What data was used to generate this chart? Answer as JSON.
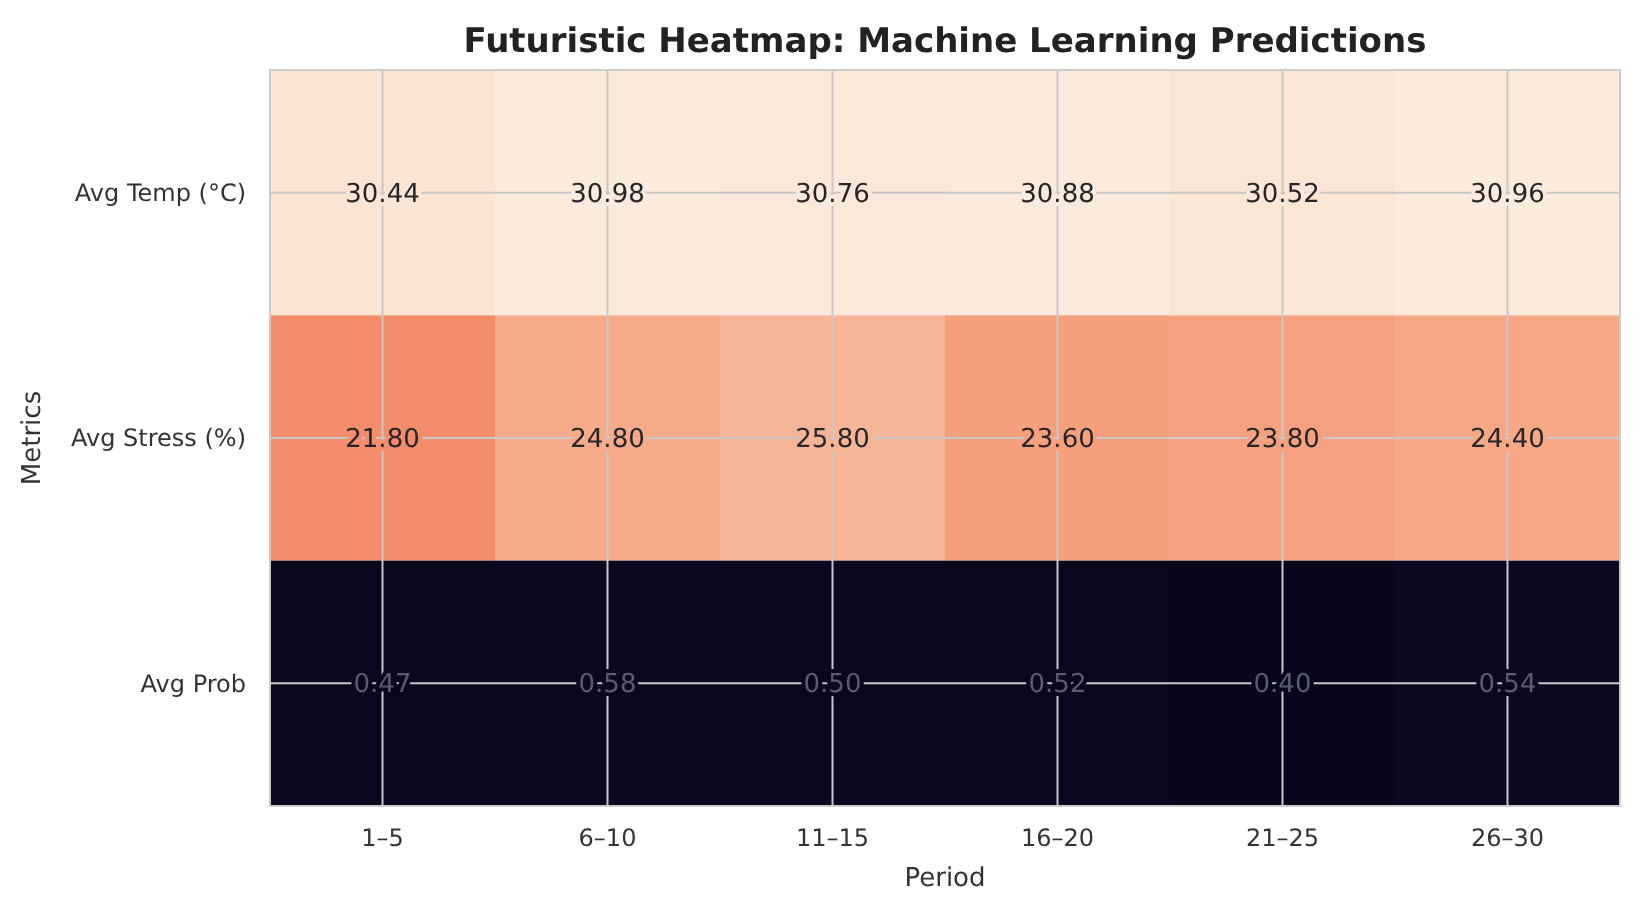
{
  "chart_data": {
    "type": "heatmap",
    "title": "Futuristic Heatmap: Machine Learning Predictions",
    "xlabel": "Period",
    "ylabel": "Metrics",
    "categories": [
      "1–5",
      "6–10",
      "11–15",
      "16–20",
      "21–25",
      "26–30"
    ],
    "y_categories": [
      "Avg Temp (°C)",
      "Avg Stress (%)",
      "Avg Prob"
    ],
    "cells": [
      [
        30.44,
        30.98,
        30.76,
        30.88,
        30.52,
        30.96
      ],
      [
        21.8,
        24.8,
        25.8,
        23.6,
        23.8,
        24.4
      ],
      [
        0.47,
        0.58,
        0.5,
        0.52,
        0.4,
        0.54
      ]
    ],
    "cell_labels": [
      [
        "30.44",
        "30.98",
        "30.76",
        "30.88",
        "30.52",
        "30.96"
      ],
      [
        "21.80",
        "24.80",
        "25.80",
        "23.60",
        "23.80",
        "24.40"
      ],
      [
        "0.47",
        "0.58",
        "0.50",
        "0.52",
        "0.40",
        "0.54"
      ]
    ],
    "grid": true
  }
}
